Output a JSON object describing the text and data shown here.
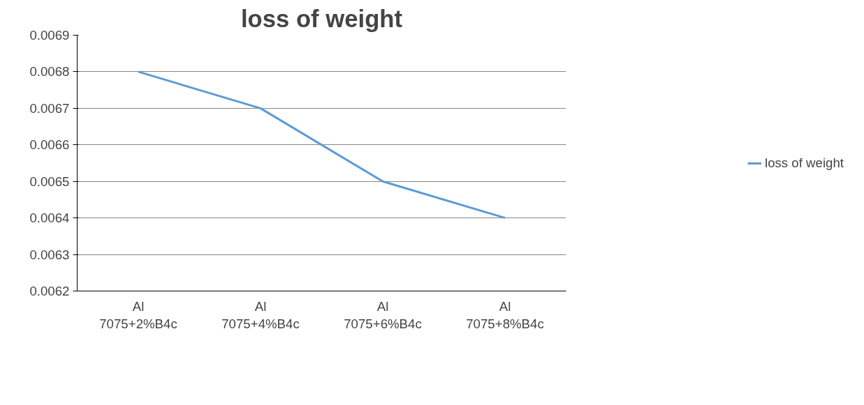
{
  "chart_data": {
    "type": "line",
    "title": "loss of weight",
    "categories": [
      "Al 7075+2%B4c",
      "Al 7075+4%B4c",
      "Al 7075+6%B4c",
      "Al 7075+8%B4c"
    ],
    "series": [
      {
        "name": "loss of weight",
        "color": "#5b9bd5",
        "values": [
          0.0068,
          0.0067,
          0.0065,
          0.0064
        ]
      }
    ],
    "ylim": [
      0.0062,
      0.0069
    ],
    "yticks": [
      0.0062,
      0.0063,
      0.0064,
      0.0065,
      0.0066,
      0.0067,
      0.0068,
      0.0069
    ],
    "grid": "y",
    "legend": "right",
    "marker": "none",
    "line_style": "solid"
  }
}
